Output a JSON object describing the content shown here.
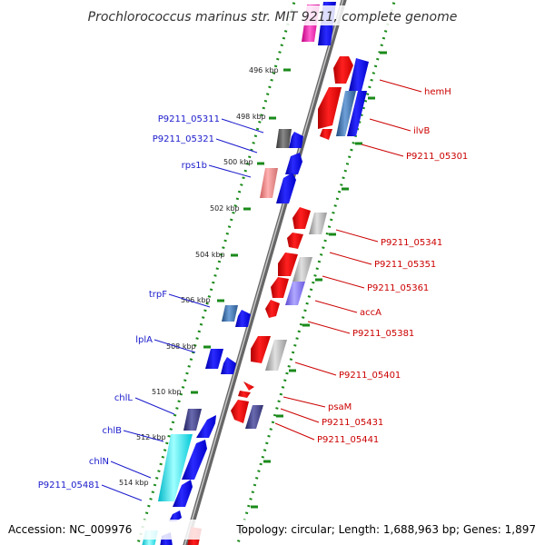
{
  "header": {
    "title": "Prochlorococcus marinus str. MIT 9211, complete genome"
  },
  "footer": {
    "accession": "Accession: NC_009976",
    "summary": "Topology: circular; Length: 1,688,963 bp; Genes: 1,897"
  },
  "ruler": {
    "ticks": [
      "496 kbp",
      "498 kbp",
      "500 kbp",
      "502 kbp",
      "504 kbp",
      "506 kbp",
      "508 kbp",
      "510 kbp",
      "512 kbp",
      "514 kbp"
    ]
  },
  "genes_left": [
    "P9211_05311",
    "P9211_05321",
    "rps1b",
    "trpF",
    "lplA",
    "chlL",
    "chlB",
    "chlN",
    "P9211_05481"
  ],
  "genes_right": [
    "hemH",
    "ilvB",
    "P9211_05301",
    "P9211_05341",
    "P9211_05351",
    "P9211_05361",
    "accA",
    "P9211_05381",
    "P9211_05401",
    "psaM",
    "P9211_05431",
    "P9211_05441"
  ],
  "colors": {
    "forward": "#0000ee",
    "reverse": "#ee0000",
    "dotted_track": "#1a8a1a",
    "backbone": "#888888"
  }
}
